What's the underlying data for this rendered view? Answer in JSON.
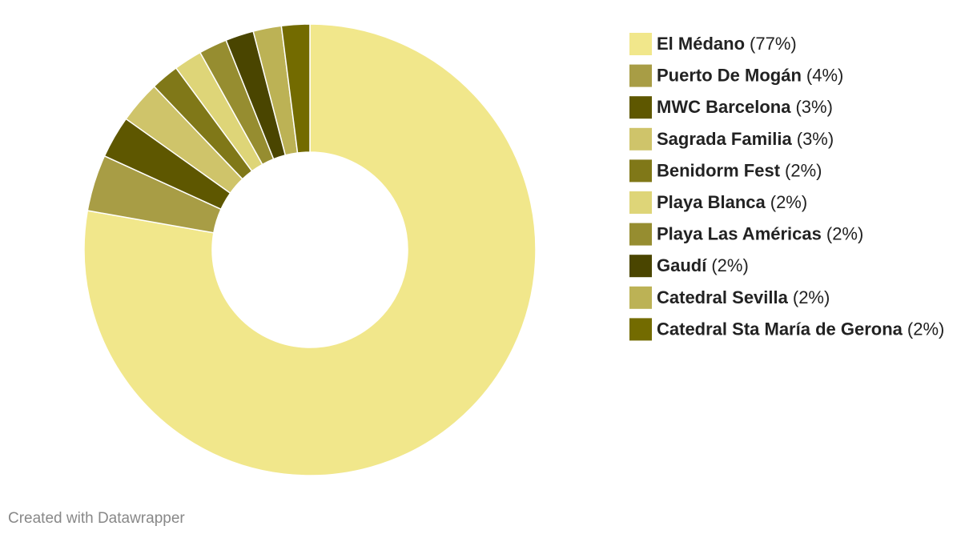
{
  "chart_data": {
    "type": "donut",
    "categories": [
      "El Médano",
      "Puerto De Mogán",
      "MWC Barcelona",
      "Sagrada Familia",
      "Benidorm Fest",
      "Playa Blanca",
      "Playa Las Américas",
      "Gaudí",
      "Catedral Sevilla",
      "Catedral Sta María de Gerona"
    ],
    "values": [
      77,
      4,
      3,
      3,
      2,
      2,
      2,
      2,
      2,
      2
    ],
    "value_labels": [
      "(77%)",
      "(4%)",
      "(3%)",
      "(3%)",
      "(2%)",
      "(2%)",
      "(2%)",
      "(2%)",
      "(2%)",
      "(2%)"
    ],
    "colors": [
      "#f1e78b",
      "#a89d45",
      "#5e5700",
      "#cfc46a",
      "#807818",
      "#ded578",
      "#968d30",
      "#4a4500",
      "#bcb255",
      "#736b00"
    ],
    "legend": "right"
  },
  "footer": "Created with Datawrapper"
}
